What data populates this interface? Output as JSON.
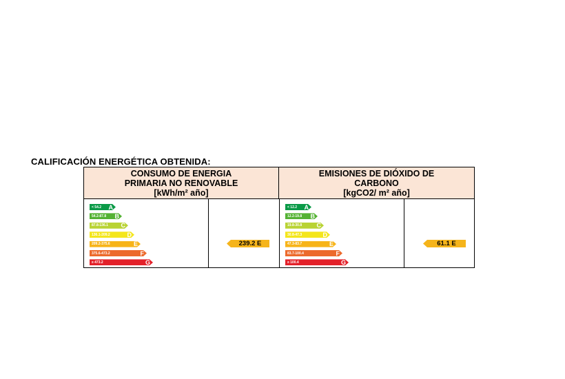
{
  "title": "CALIFICACIÓN ENERGÉTICA OBTENIDA:",
  "energy": {
    "header_line1": "CONSUMO DE ENERGIA",
    "header_line2": "PRIMARIA NO RENOVABLE",
    "unit": "[kWh/m² año]",
    "scale": [
      {
        "range": "< 54.2",
        "letter": "A",
        "color": "#0a9a47"
      },
      {
        "range": "54.2-87.8",
        "letter": "B",
        "color": "#53b233"
      },
      {
        "range": "87.8-136.1",
        "letter": "C",
        "color": "#b9d334"
      },
      {
        "range": "136.1-209.2",
        "letter": "D",
        "color": "#f4e61b"
      },
      {
        "range": "209.2-375.6",
        "letter": "E",
        "color": "#f7b418"
      },
      {
        "range": "375.6-473.2",
        "letter": "F",
        "color": "#ec6a2c"
      },
      {
        "range": "≥ 473.2",
        "letter": "G",
        "color": "#e3212a"
      }
    ],
    "result": "239.2 E",
    "result_letter": "E"
  },
  "co2": {
    "header_line1": "EMISIONES DE DIÓXIDO DE",
    "header_line2": "CARBONO",
    "unit": "[kgCO2/ m² año]",
    "scale": [
      {
        "range": "< 12.2",
        "letter": "A",
        "color": "#0a9a47"
      },
      {
        "range": "12.2-19.8",
        "letter": "B",
        "color": "#53b233"
      },
      {
        "range": "19.8-30.8",
        "letter": "C",
        "color": "#b9d334"
      },
      {
        "range": "30.8-47.3",
        "letter": "D",
        "color": "#f4e61b"
      },
      {
        "range": "47.3-83.7",
        "letter": "E",
        "color": "#f7b418"
      },
      {
        "range": "83.7-100.4",
        "letter": "F",
        "color": "#ec6a2c"
      },
      {
        "range": "≥ 100.4",
        "letter": "G",
        "color": "#e3212a"
      }
    ],
    "result": "61.1 E",
    "result_letter": "E"
  }
}
